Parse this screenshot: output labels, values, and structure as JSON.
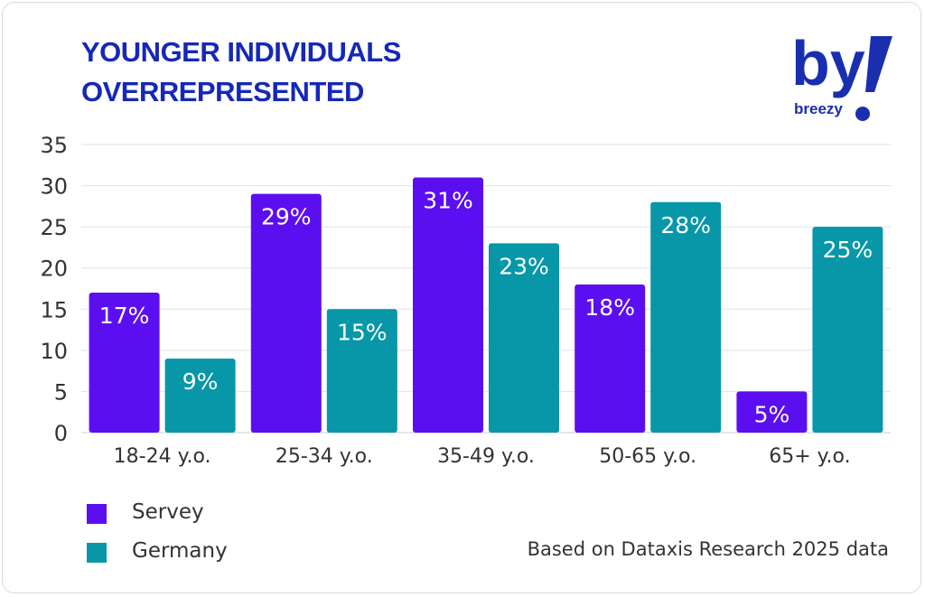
{
  "title": [
    "YOUNGER INDIVIDUALS",
    "OVERREPRESENTED"
  ],
  "logo": {
    "mark": "by",
    "wordmark": "breezy",
    "color": "#1a2eb0",
    "name": "breezy-logo"
  },
  "source_note": "Based on Dataxis Research 2025 data",
  "colors": {
    "servey": "#5b0ff0",
    "germany": "#0797a8",
    "grid": "#e2e2e2",
    "axis_text": "#333333"
  },
  "chart_data": {
    "type": "bar",
    "categories": [
      "18-24 y.o.",
      "25-34 y.o.",
      "35-49 y.o.",
      "50-65 y.o.",
      "65+ y.o."
    ],
    "series": [
      {
        "name": "Servey",
        "values": [
          17,
          29,
          31,
          18,
          5
        ],
        "labels": [
          "17%",
          "29%",
          "31%",
          "18%",
          "5%"
        ],
        "color": "#5b0ff0"
      },
      {
        "name": "Germany",
        "values": [
          9,
          15,
          23,
          28,
          25
        ],
        "labels": [
          "9%",
          "15%",
          "23%",
          "28%",
          "25%"
        ],
        "color": "#0797a8"
      }
    ],
    "ylim": [
      0,
      35
    ],
    "yticks": [
      0,
      5,
      10,
      15,
      20,
      25,
      30,
      35
    ],
    "grid": true,
    "legend": "bottom-left"
  }
}
